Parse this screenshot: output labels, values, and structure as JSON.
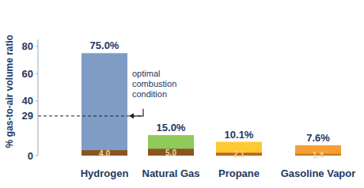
{
  "chart_data": {
    "type": "bar",
    "y_label": "% gas-to-air volume ratio",
    "categories": [
      "Hydrogen",
      "Natural Gas",
      "Propane",
      "Gasoline Vapor"
    ],
    "series": [
      {
        "values": [
          75.0,
          15.0,
          10.1,
          7.6
        ],
        "value_labels": [
          "75.0%",
          "15.0%",
          "10.1%",
          "7.6%"
        ],
        "colors": [
          "#7f9cc4",
          "#8fca5a",
          "#ffc933",
          "#f7a032"
        ]
      },
      {
        "values": [
          4.0,
          5.0,
          2.1,
          1.4
        ],
        "value_labels": [
          "4.0",
          "5.0",
          "2.1",
          "1.4"
        ],
        "colors": [
          "#8a5522",
          "#8a5522",
          "#b8661f",
          "#c97a2a"
        ]
      }
    ],
    "ylim": [
      0,
      85
    ],
    "yticks": [
      0,
      40,
      60,
      80
    ],
    "data_labels": true,
    "grid": false,
    "annotations": [
      {
        "text": "optimal combustion condition",
        "y": 29
      }
    ]
  }
}
